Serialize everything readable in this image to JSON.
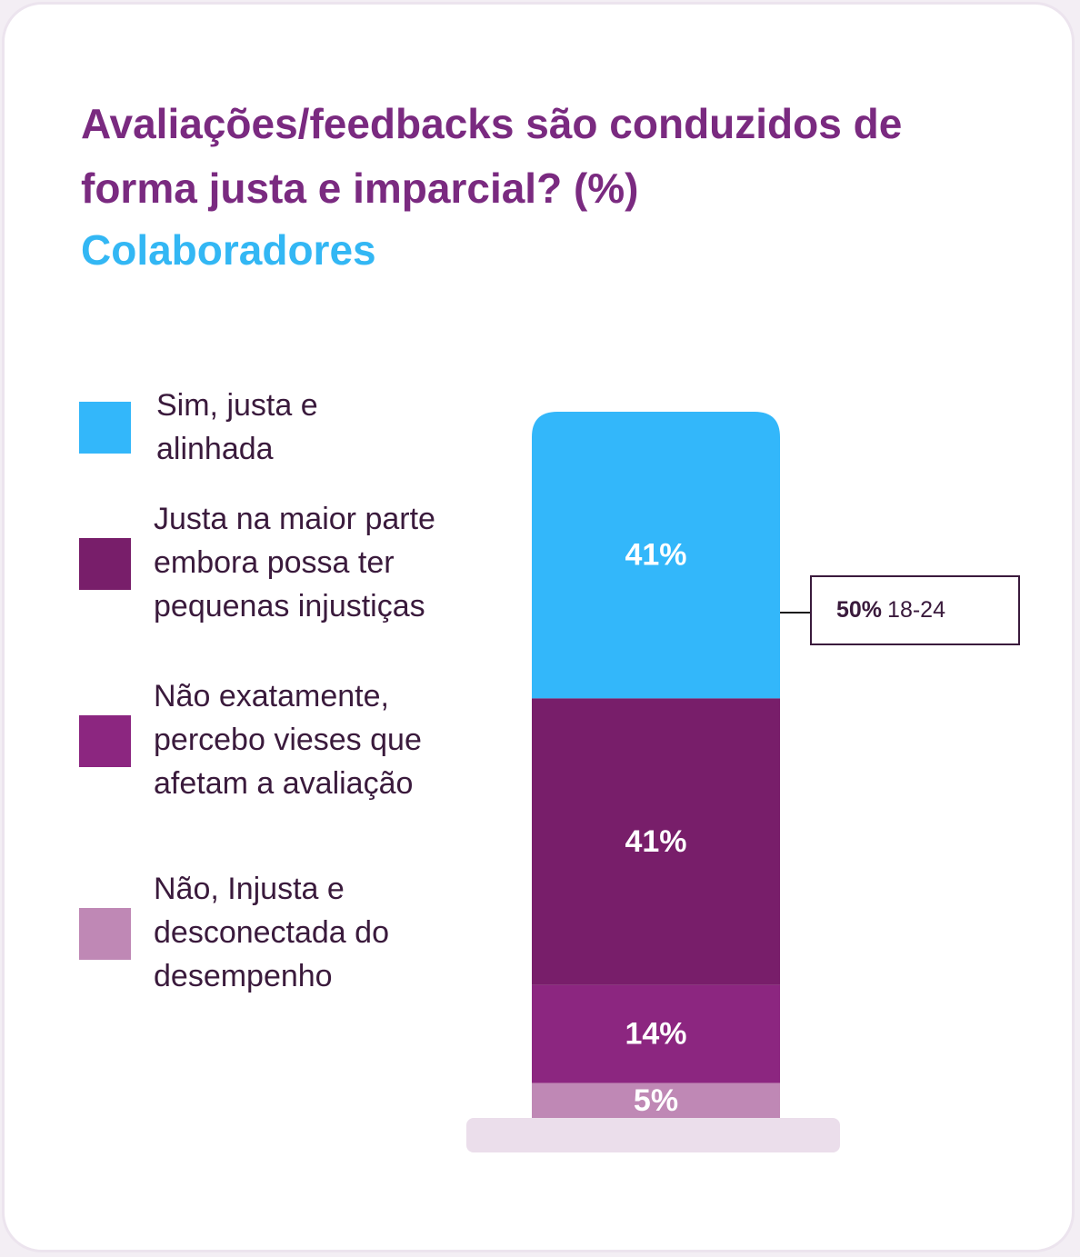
{
  "title": "Avaliações/feedbacks são conduzidos de forma justa e imparcial? (%)",
  "subtitle": "Colaboradores",
  "chart_data": {
    "type": "bar",
    "stacked": true,
    "title": "Avaliações/feedbacks são conduzidos de forma justa e imparcial? (%)",
    "subtitle": "Colaboradores",
    "categories": [
      "Colaboradores"
    ],
    "series": [
      {
        "name": "Sim, justa e alinhada",
        "values": [
          41
        ],
        "label": "41%",
        "color": "#33b7fa"
      },
      {
        "name": "Justa na maior parte embora possa ter pequenas injustiças",
        "values": [
          41
        ],
        "label": "41%",
        "color": "#781e6a"
      },
      {
        "name": "Não exatamente, percebo vieses que afetam a avaliação",
        "values": [
          14
        ],
        "label": "14%",
        "color": "#8c2680"
      },
      {
        "name": "Não, Injusta e desconectada do desempenho",
        "values": [
          5
        ],
        "label": "5%",
        "color": "#bf88b5"
      }
    ],
    "legend_position": "left",
    "annotation": {
      "series": "Sim, justa e alinhada",
      "value": "50%",
      "group": "18-24"
    }
  }
}
